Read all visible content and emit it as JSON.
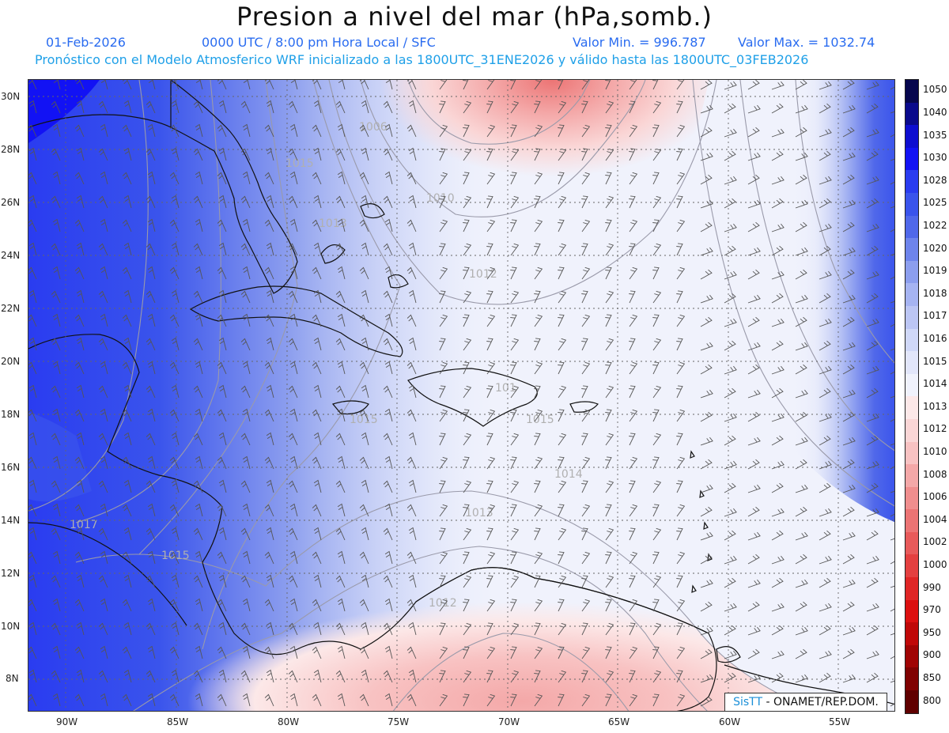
{
  "title": "Presion a nivel del mar (hPa,somb.)",
  "header": {
    "date": "01-Feb-2026",
    "time": "0000 UTC / 8:00 pm Hora Local / SFC",
    "valor_min": "Valor Min. = 996.787",
    "valor_max": "Valor Max. = 1032.74",
    "model_info": "Pronóstico con el Modelo Atmosferico WRF inicializado a las 1800UTC_31ENE2026 y válido hasta las  1800UTC_03FEB2026"
  },
  "axes": {
    "lat_labels": [
      "30N",
      "28N",
      "26N",
      "24N",
      "22N",
      "20N",
      "18N",
      "16N",
      "14N",
      "12N",
      "10N",
      "8N"
    ],
    "lon_labels": [
      "90W",
      "85W",
      "80W",
      "75W",
      "70W",
      "65W",
      "60W",
      "55W"
    ]
  },
  "colorbar": {
    "levels": [
      "1050",
      "1040",
      "1035",
      "1030",
      "1028",
      "1025",
      "1022",
      "1020",
      "1019",
      "1018",
      "1017",
      "1016",
      "1015",
      "1014",
      "1013",
      "1012",
      "1010",
      "1008",
      "1006",
      "1004",
      "1002",
      "1000",
      "990",
      "970",
      "950",
      "900",
      "850",
      "800"
    ],
    "colors": [
      "#06064e",
      "#0a0a8c",
      "#0e0ed0",
      "#1212f4",
      "#2a3cf0",
      "#3a54ec",
      "#5068ea",
      "#6e84ec",
      "#8c9eee",
      "#a6b4f2",
      "#bcc6f4",
      "#d0d8f8",
      "#e2e6fa",
      "#f0f2fc",
      "#fce8e8",
      "#fad6d6",
      "#f8c2c2",
      "#f4a8a8",
      "#f08e8e",
      "#ec7474",
      "#e85a5a",
      "#e44040",
      "#e02626",
      "#dc1010",
      "#c00808",
      "#a00404",
      "#800202",
      "#600000"
    ]
  },
  "contour_labels": [
    "1006",
    "1010",
    "1013",
    "1012",
    "1015",
    "1015",
    "1015",
    "1014",
    "1013",
    "1017",
    "1015",
    "1012",
    "101"
  ],
  "credit": {
    "brand": "SisTT",
    "org": " - ONAMET/REP.DOM."
  }
}
